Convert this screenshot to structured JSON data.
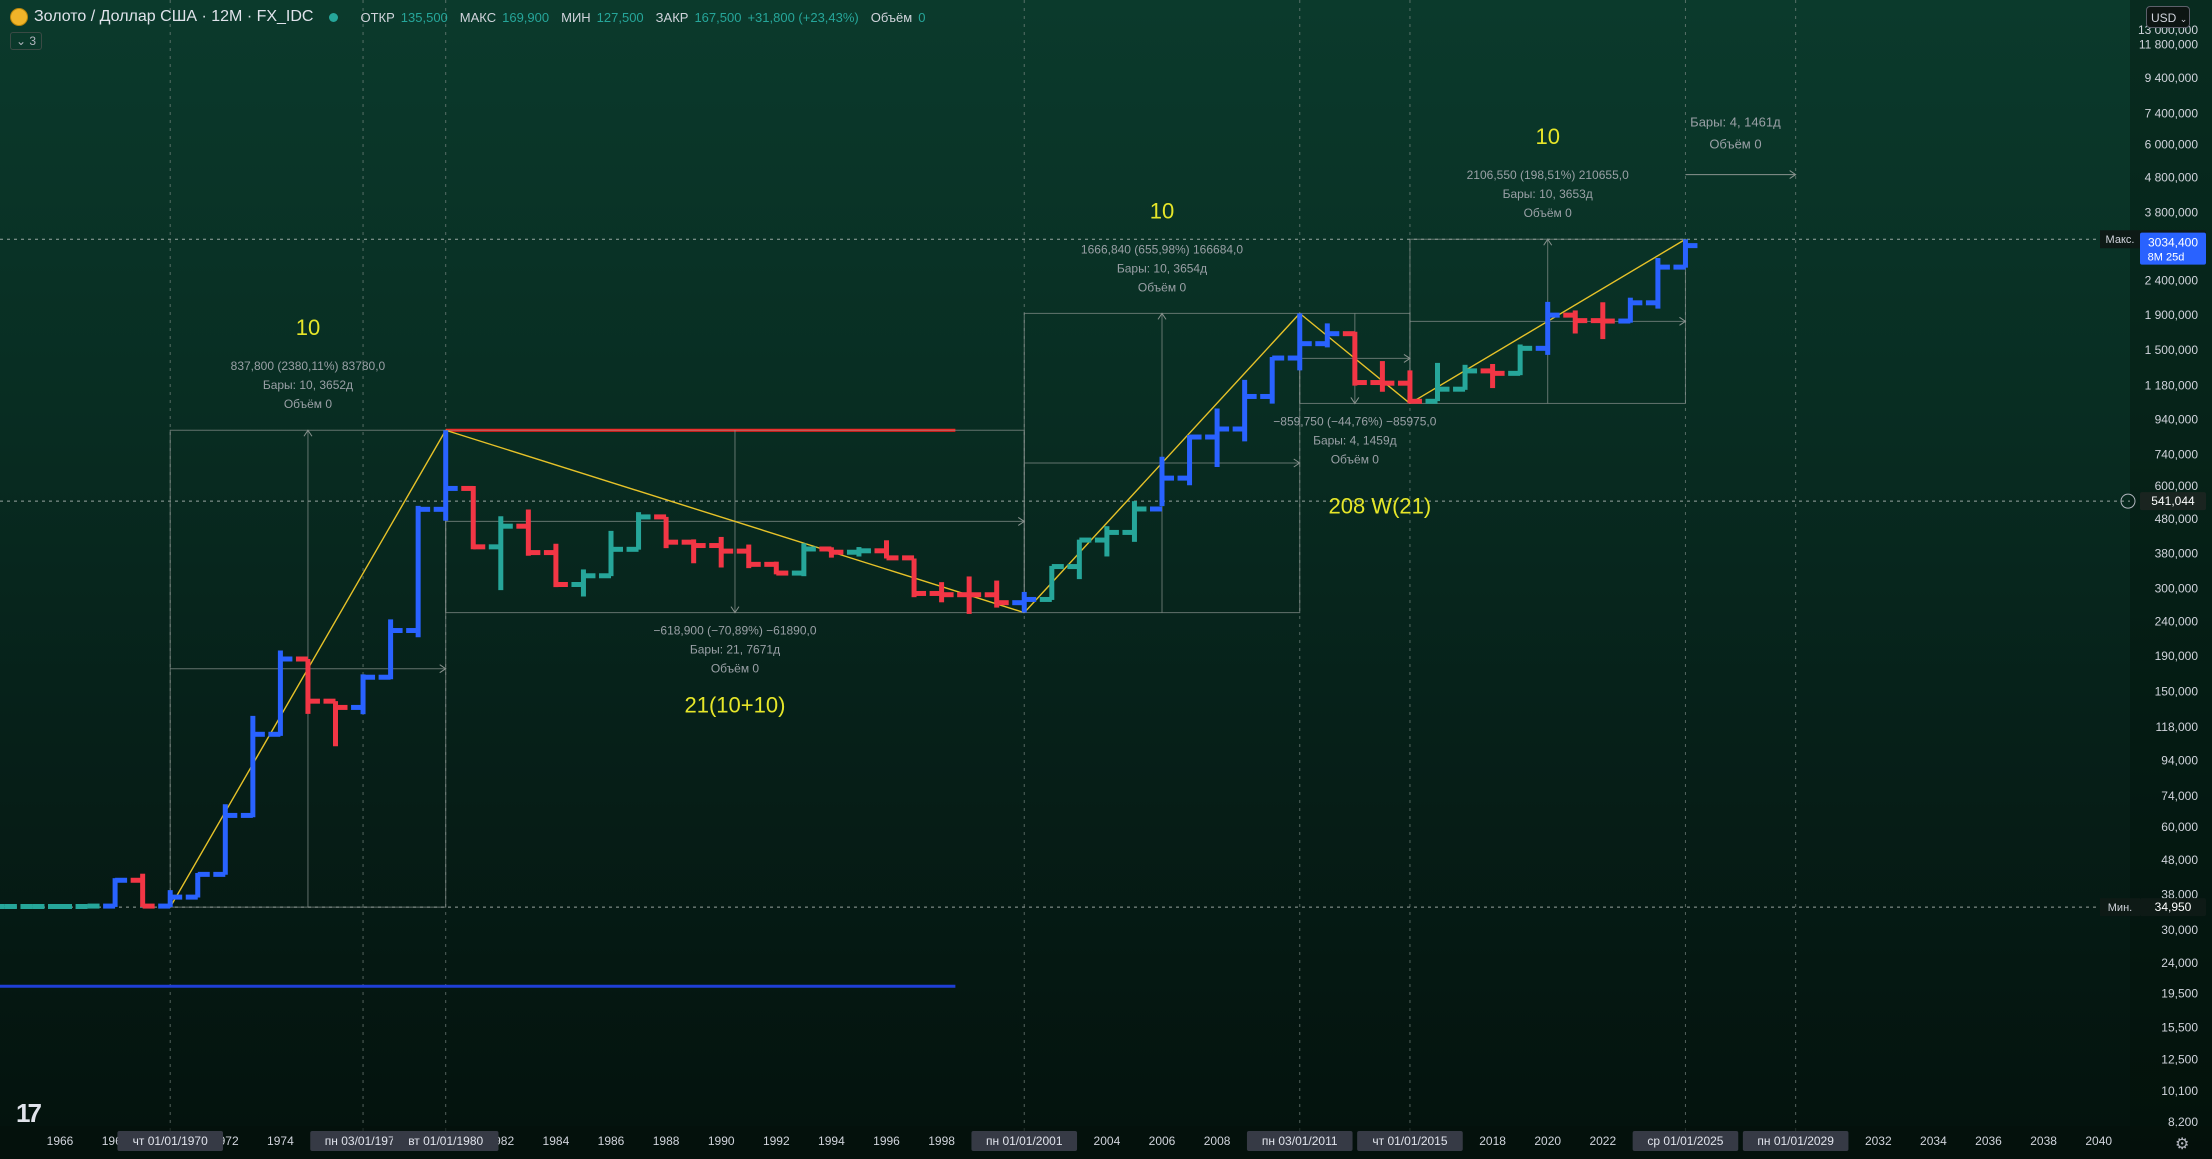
{
  "header": {
    "symbol": "Золото / Доллар США · 12M · FX_IDC",
    "open_label": "ОТКР",
    "open": "135,500",
    "high_label": "МАКС",
    "high": "169,900",
    "low_label": "МИН",
    "low": "127,500",
    "close_label": "ЗАКР",
    "close": "167,500",
    "change": "+31,800 (+23,43%)",
    "volume_label": "Объём",
    "volume": "0"
  },
  "indicator_toggle": "3",
  "currency_button": "USD",
  "colors": {
    "up": "#2962ff",
    "down": "#f23645",
    "neutral": "#26a69a",
    "guide": "#e6c229",
    "label": "#e6e629",
    "resistance": "#ff1a1a",
    "support": "#1f3fd6"
  },
  "chart_data": {
    "type": "bar",
    "title": "",
    "xlabel": "",
    "ylabel": "",
    "x_range": [
      1963,
      2042
    ],
    "ylim": [
      7000,
      17000000
    ],
    "y_scale": "log",
    "price_ticks": [
      "13 000,000",
      "11 800,000",
      "9 400,000",
      "7 400,000",
      "6 000,000",
      "4 800,000",
      "3 800,000",
      "3 000,000",
      "2 400,000",
      "1 900,000",
      "1 500,000",
      "1 180,000",
      "940,000",
      "740,000",
      "600,000",
      "480,000",
      "380,000",
      "300,000",
      "240,000",
      "190,000",
      "150,000",
      "118,000",
      "94,000",
      "74,000",
      "60,000",
      "48,000",
      "38,000",
      "30,000",
      "24,000",
      "19,500",
      "15,500",
      "12,500",
      "10,100",
      "8,200"
    ],
    "price_tick_values": [
      13000,
      11800,
      9400,
      7400,
      6000,
      4800,
      3800,
      3000,
      2400,
      1900,
      1500,
      1180,
      940,
      740,
      600,
      480,
      380,
      300,
      240,
      190,
      150,
      118,
      94,
      74,
      60,
      48,
      38,
      30,
      24,
      19.5,
      15.5,
      12.5,
      10.1,
      8.2
    ],
    "x_ticks": [
      {
        "label": "1966",
        "year": 1966
      },
      {
        "label": "1968",
        "year": 1968
      },
      {
        "label": "1972",
        "year": 1972
      },
      {
        "label": "1974",
        "year": 1974
      },
      {
        "label": "1982",
        "year": 1982
      },
      {
        "label": "1984",
        "year": 1984
      },
      {
        "label": "1986",
        "year": 1986
      },
      {
        "label": "1988",
        "year": 1988
      },
      {
        "label": "1990",
        "year": 1990
      },
      {
        "label": "1992",
        "year": 1992
      },
      {
        "label": "1994",
        "year": 1994
      },
      {
        "label": "1996",
        "year": 1996
      },
      {
        "label": "1998",
        "year": 1998
      },
      {
        "label": "2004",
        "year": 2004
      },
      {
        "label": "2006",
        "year": 2006
      },
      {
        "label": "2008",
        "year": 2008
      },
      {
        "label": "2018",
        "year": 2018
      },
      {
        "label": "2020",
        "year": 2020
      },
      {
        "label": "2022",
        "year": 2022
      },
      {
        "label": "2032",
        "year": 2032
      },
      {
        "label": "2034",
        "year": 2034
      },
      {
        "label": "2036",
        "year": 2036
      },
      {
        "label": "2038",
        "year": 2038
      },
      {
        "label": "2040",
        "year": 2040
      }
    ],
    "x_highlights": [
      {
        "label": "чт 01/01/1970",
        "year": 1970
      },
      {
        "label": "пн 03/01/1977",
        "year": 1977
      },
      {
        "label": "вт 01/01/1980",
        "year": 1980
      },
      {
        "label": "пн 01/01/2001",
        "year": 2001
      },
      {
        "label": "пн 03/01/2011",
        "year": 2011
      },
      {
        "label": "чт 01/01/2015",
        "year": 2015
      },
      {
        "label": "ср 01/01/2025",
        "year": 2025
      },
      {
        "label": "пн 01/01/2029",
        "year": 2029
      }
    ],
    "price_markers": [
      {
        "label": "Макс.",
        "value": "3167,740",
        "price": 3167.74
      },
      {
        "label": "",
        "value": "3034,400",
        "sub": "8M 25d",
        "price": 3034.4
      },
      {
        "label": "",
        "value": "541,044",
        "price": 541.044
      },
      {
        "label": "Мин.",
        "value": "34,950",
        "price": 34.95
      }
    ],
    "bars": [
      {
        "year": 1963,
        "o": 35.1,
        "h": 35.2,
        "l": 35.0,
        "c": 35.1
      },
      {
        "year": 1964,
        "o": 35.1,
        "h": 35.2,
        "l": 35.0,
        "c": 35.1
      },
      {
        "year": 1965,
        "o": 35.1,
        "h": 35.2,
        "l": 35.0,
        "c": 35.1
      },
      {
        "year": 1966,
        "o": 35.1,
        "h": 35.2,
        "l": 35.0,
        "c": 35.1
      },
      {
        "year": 1967,
        "o": 35.1,
        "h": 35.3,
        "l": 35.0,
        "c": 35.2
      },
      {
        "year": 1968,
        "o": 35.2,
        "h": 42.5,
        "l": 35.0,
        "c": 41.9
      },
      {
        "year": 1969,
        "o": 41.9,
        "h": 43.8,
        "l": 35.0,
        "c": 35.2
      },
      {
        "year": 1970,
        "o": 35.2,
        "h": 39.2,
        "l": 34.95,
        "c": 37.4
      },
      {
        "year": 1971,
        "o": 37.4,
        "h": 44.0,
        "l": 37.3,
        "c": 43.6
      },
      {
        "year": 1972,
        "o": 43.6,
        "h": 70.0,
        "l": 43.5,
        "c": 64.9
      },
      {
        "year": 1973,
        "o": 64.9,
        "h": 127.0,
        "l": 64.1,
        "c": 112.2
      },
      {
        "year": 1974,
        "o": 112.2,
        "h": 197.5,
        "l": 111.0,
        "c": 186.5
      },
      {
        "year": 1975,
        "o": 186.5,
        "h": 186.5,
        "l": 128.8,
        "c": 140.3
      },
      {
        "year": 1976,
        "o": 140.3,
        "h": 140.3,
        "l": 103.5,
        "c": 134.5
      },
      {
        "year": 1977,
        "o": 134.5,
        "h": 168.1,
        "l": 128.5,
        "c": 164.9
      },
      {
        "year": 1978,
        "o": 164.9,
        "h": 243.7,
        "l": 162.7,
        "c": 226.0
      },
      {
        "year": 1979,
        "o": 226.0,
        "h": 524.0,
        "l": 216.0,
        "c": 512.0
      },
      {
        "year": 1980,
        "o": 512.0,
        "h": 873.0,
        "l": 474.0,
        "c": 589.5
      },
      {
        "year": 1981,
        "o": 589.5,
        "h": 599.3,
        "l": 391.0,
        "c": 397.5
      },
      {
        "year": 1982,
        "o": 397.5,
        "h": 488.5,
        "l": 296.8,
        "c": 456.9
      },
      {
        "year": 1983,
        "o": 456.9,
        "h": 511.5,
        "l": 374.2,
        "c": 382.4
      },
      {
        "year": 1984,
        "o": 382.4,
        "h": 406.0,
        "l": 303.0,
        "c": 308.3
      },
      {
        "year": 1985,
        "o": 308.3,
        "h": 341.3,
        "l": 284.3,
        "c": 327.0
      },
      {
        "year": 1986,
        "o": 327.0,
        "h": 442.7,
        "l": 326.3,
        "c": 390.9
      },
      {
        "year": 1987,
        "o": 390.9,
        "h": 502.3,
        "l": 390.0,
        "c": 486.5
      },
      {
        "year": 1988,
        "o": 486.5,
        "h": 486.5,
        "l": 394.0,
        "c": 410.2
      },
      {
        "year": 1989,
        "o": 410.2,
        "h": 418.0,
        "l": 355.8,
        "c": 401.0
      },
      {
        "year": 1990,
        "o": 401.0,
        "h": 425.0,
        "l": 345.8,
        "c": 386.2
      },
      {
        "year": 1991,
        "o": 386.2,
        "h": 403.7,
        "l": 344.3,
        "c": 353.2
      },
      {
        "year": 1992,
        "o": 353.2,
        "h": 359.6,
        "l": 330.2,
        "c": 333.0
      },
      {
        "year": 1993,
        "o": 333.0,
        "h": 407.0,
        "l": 326.1,
        "c": 391.8
      },
      {
        "year": 1994,
        "o": 391.8,
        "h": 396.3,
        "l": 369.6,
        "c": 383.3
      },
      {
        "year": 1995,
        "o": 383.3,
        "h": 396.9,
        "l": 372.4,
        "c": 387.0
      },
      {
        "year": 1996,
        "o": 387.0,
        "h": 415.5,
        "l": 367.4,
        "c": 369.0
      },
      {
        "year": 1997,
        "o": 369.0,
        "h": 367.4,
        "l": 283.0,
        "c": 290.2
      },
      {
        "year": 1998,
        "o": 290.2,
        "h": 313.2,
        "l": 273.4,
        "c": 287.8
      },
      {
        "year": 1999,
        "o": 287.8,
        "h": 325.5,
        "l": 252.8,
        "c": 287.7
      },
      {
        "year": 2000,
        "o": 287.7,
        "h": 316.6,
        "l": 263.8,
        "c": 272.7
      },
      {
        "year": 2001,
        "o": 272.7,
        "h": 293.2,
        "l": 255.0,
        "c": 278.7
      },
      {
        "year": 2002,
        "o": 278.7,
        "h": 349.5,
        "l": 277.8,
        "c": 348.0
      },
      {
        "year": 2003,
        "o": 348.0,
        "h": 417.3,
        "l": 319.7,
        "c": 416.1
      },
      {
        "year": 2004,
        "o": 416.1,
        "h": 456.9,
        "l": 372.5,
        "c": 438.1
      },
      {
        "year": 2005,
        "o": 438.1,
        "h": 541.0,
        "l": 411.1,
        "c": 513.2
      },
      {
        "year": 2006,
        "o": 513.2,
        "h": 730.0,
        "l": 523.0,
        "c": 632.0
      },
      {
        "year": 2007,
        "o": 632.0,
        "h": 845.0,
        "l": 602.5,
        "c": 834.0
      },
      {
        "year": 2008,
        "o": 834.0,
        "h": 1011.3,
        "l": 681.0,
        "c": 880.3
      },
      {
        "year": 2009,
        "o": 880.3,
        "h": 1226.1,
        "l": 810.0,
        "c": 1096.5
      },
      {
        "year": 2010,
        "o": 1096.5,
        "h": 1431.0,
        "l": 1045.0,
        "c": 1421.1
      },
      {
        "year": 2011,
        "o": 1421.1,
        "h": 1920.8,
        "l": 1308.0,
        "c": 1565.8
      },
      {
        "year": 2012,
        "o": 1565.8,
        "h": 1795.6,
        "l": 1527.0,
        "c": 1675.0
      },
      {
        "year": 2013,
        "o": 1675.0,
        "h": 1696.9,
        "l": 1180.0,
        "c": 1204.5
      },
      {
        "year": 2014,
        "o": 1204.5,
        "h": 1392.2,
        "l": 1131.9,
        "c": 1199.3
      },
      {
        "year": 2015,
        "o": 1199.3,
        "h": 1307.4,
        "l": 1046.2,
        "c": 1061.4
      },
      {
        "year": 2016,
        "o": 1061.4,
        "h": 1375.2,
        "l": 1062.8,
        "c": 1151.7
      },
      {
        "year": 2017,
        "o": 1151.7,
        "h": 1357.6,
        "l": 1146.5,
        "c": 1302.9
      },
      {
        "year": 2018,
        "o": 1302.9,
        "h": 1365.2,
        "l": 1160.3,
        "c": 1281.6
      },
      {
        "year": 2019,
        "o": 1281.6,
        "h": 1557.1,
        "l": 1266.0,
        "c": 1517.3
      },
      {
        "year": 2020,
        "o": 1517.3,
        "h": 2075.1,
        "l": 1451.6,
        "c": 1898.4
      },
      {
        "year": 2021,
        "o": 1898.4,
        "h": 1959.3,
        "l": 1676.9,
        "c": 1829.2
      },
      {
        "year": 2022,
        "o": 1829.2,
        "h": 2070.4,
        "l": 1614.9,
        "c": 1824.0
      },
      {
        "year": 2023,
        "o": 1824.0,
        "h": 2135.4,
        "l": 1804.3,
        "c": 2062.9
      },
      {
        "year": 2024,
        "o": 2062.9,
        "h": 2790.1,
        "l": 1984.3,
        "c": 2624.7
      },
      {
        "year": 2025,
        "o": 2624.7,
        "h": 3167.7,
        "l": 2614.6,
        "c": 3034.4
      }
    ],
    "trend_lines": [
      {
        "from": {
          "year": 1970,
          "price": 34.95
        },
        "to": {
          "year": 1980,
          "price": 873
        }
      },
      {
        "from": {
          "year": 1980,
          "price": 873
        },
        "to": {
          "year": 2001,
          "price": 255
        }
      },
      {
        "from": {
          "year": 2001,
          "price": 255
        },
        "to": {
          "year": 2011,
          "price": 1920.8
        }
      },
      {
        "from": {
          "year": 2011,
          "price": 1920.8
        },
        "to": {
          "year": 2015,
          "price": 1046.2
        }
      },
      {
        "from": {
          "year": 2015,
          "price": 1046.2
        },
        "to": {
          "year": 2025,
          "price": 3167.7
        }
      }
    ],
    "resistance_line": {
      "year_from": 1980,
      "year_to": 1998.5,
      "price": 873
    },
    "support_line": {
      "year_from": 1963,
      "year_to": 1998.5,
      "price": 20.5
    },
    "measure_boxes": [
      {
        "x0": 1970,
        "x1": 1980,
        "p0": 34.95,
        "p1": 873,
        "ax": 1975,
        "dir": "up",
        "lines": [
          "837,800 (2380,11%) 83780,0",
          "Бары: 10, 3652д",
          "Объём 0"
        ],
        "count": "10"
      },
      {
        "x0": 1980,
        "x1": 2001,
        "p0": 873,
        "p1": 255,
        "ax": 1990.5,
        "dir": "down",
        "lines": [
          "−618,900 (−70,89%) −61890,0",
          "Бары: 21, 7671д",
          "Объём 0"
        ],
        "count": "21(10+10)"
      },
      {
        "x0": 2001,
        "x1": 2011,
        "p0": 255,
        "p1": 1920.8,
        "ax": 2006,
        "dir": "up",
        "lines": [
          "1666,840 (655,98%) 166684,0",
          "Бары: 10, 3654д",
          "Объём 0"
        ],
        "count": "10"
      },
      {
        "x0": 2011,
        "x1": 2015,
        "p0": 1920.8,
        "p1": 1046.2,
        "ax": 2013,
        "dir": "down",
        "lines": [
          "−859,750 (−44,76%) −85975,0",
          "Бары: 4, 1459д",
          "Объём 0"
        ],
        "count": "208 W(21)"
      },
      {
        "x0": 2015,
        "x1": 2025,
        "p0": 1046.2,
        "p1": 3167.7,
        "ax": 2020,
        "dir": "up",
        "lines": [
          "2106,550 (198,51%) 210655,0",
          "Бары: 10, 3653д",
          "Объём 0"
        ],
        "count": "10"
      },
      {
        "x0": 2025,
        "x1": 2029,
        "p0": 4900,
        "p1": 4900,
        "ax": 2027,
        "dir": "flat",
        "lines": [
          "Бары: 4, 1461д",
          "Объём 0"
        ],
        "count": ""
      }
    ]
  }
}
